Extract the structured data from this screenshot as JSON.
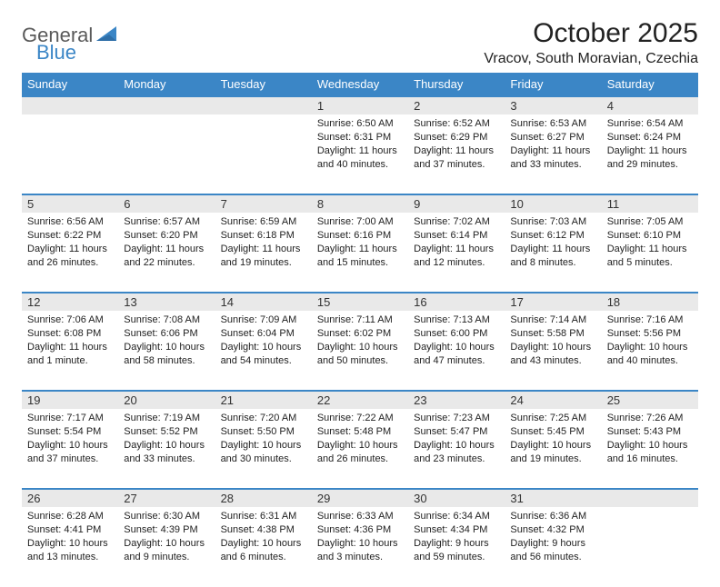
{
  "brand": {
    "part1": "General",
    "part2": "Blue"
  },
  "title": "October 2025",
  "location": "Vracov, South Moravian, Czechia",
  "colors": {
    "accent": "#3b86c6",
    "header_text": "#ffffff",
    "daynum_bg": "#e9e9e9",
    "page_bg": "#ffffff",
    "text": "#222222",
    "logo_gray": "#5a5a5a"
  },
  "day_headers": [
    "Sunday",
    "Monday",
    "Tuesday",
    "Wednesday",
    "Thursday",
    "Friday",
    "Saturday"
  ],
  "weeks": [
    {
      "nums": [
        "",
        "",
        "",
        "1",
        "2",
        "3",
        "4"
      ],
      "cells": [
        null,
        null,
        null,
        {
          "sunrise": "6:50 AM",
          "sunset": "6:31 PM",
          "daylight": "11 hours and 40 minutes."
        },
        {
          "sunrise": "6:52 AM",
          "sunset": "6:29 PM",
          "daylight": "11 hours and 37 minutes."
        },
        {
          "sunrise": "6:53 AM",
          "sunset": "6:27 PM",
          "daylight": "11 hours and 33 minutes."
        },
        {
          "sunrise": "6:54 AM",
          "sunset": "6:24 PM",
          "daylight": "11 hours and 29 minutes."
        }
      ]
    },
    {
      "nums": [
        "5",
        "6",
        "7",
        "8",
        "9",
        "10",
        "11"
      ],
      "cells": [
        {
          "sunrise": "6:56 AM",
          "sunset": "6:22 PM",
          "daylight": "11 hours and 26 minutes."
        },
        {
          "sunrise": "6:57 AM",
          "sunset": "6:20 PM",
          "daylight": "11 hours and 22 minutes."
        },
        {
          "sunrise": "6:59 AM",
          "sunset": "6:18 PM",
          "daylight": "11 hours and 19 minutes."
        },
        {
          "sunrise": "7:00 AM",
          "sunset": "6:16 PM",
          "daylight": "11 hours and 15 minutes."
        },
        {
          "sunrise": "7:02 AM",
          "sunset": "6:14 PM",
          "daylight": "11 hours and 12 minutes."
        },
        {
          "sunrise": "7:03 AM",
          "sunset": "6:12 PM",
          "daylight": "11 hours and 8 minutes."
        },
        {
          "sunrise": "7:05 AM",
          "sunset": "6:10 PM",
          "daylight": "11 hours and 5 minutes."
        }
      ]
    },
    {
      "nums": [
        "12",
        "13",
        "14",
        "15",
        "16",
        "17",
        "18"
      ],
      "cells": [
        {
          "sunrise": "7:06 AM",
          "sunset": "6:08 PM",
          "daylight": "11 hours and 1 minute."
        },
        {
          "sunrise": "7:08 AM",
          "sunset": "6:06 PM",
          "daylight": "10 hours and 58 minutes."
        },
        {
          "sunrise": "7:09 AM",
          "sunset": "6:04 PM",
          "daylight": "10 hours and 54 minutes."
        },
        {
          "sunrise": "7:11 AM",
          "sunset": "6:02 PM",
          "daylight": "10 hours and 50 minutes."
        },
        {
          "sunrise": "7:13 AM",
          "sunset": "6:00 PM",
          "daylight": "10 hours and 47 minutes."
        },
        {
          "sunrise": "7:14 AM",
          "sunset": "5:58 PM",
          "daylight": "10 hours and 43 minutes."
        },
        {
          "sunrise": "7:16 AM",
          "sunset": "5:56 PM",
          "daylight": "10 hours and 40 minutes."
        }
      ]
    },
    {
      "nums": [
        "19",
        "20",
        "21",
        "22",
        "23",
        "24",
        "25"
      ],
      "cells": [
        {
          "sunrise": "7:17 AM",
          "sunset": "5:54 PM",
          "daylight": "10 hours and 37 minutes."
        },
        {
          "sunrise": "7:19 AM",
          "sunset": "5:52 PM",
          "daylight": "10 hours and 33 minutes."
        },
        {
          "sunrise": "7:20 AM",
          "sunset": "5:50 PM",
          "daylight": "10 hours and 30 minutes."
        },
        {
          "sunrise": "7:22 AM",
          "sunset": "5:48 PM",
          "daylight": "10 hours and 26 minutes."
        },
        {
          "sunrise": "7:23 AM",
          "sunset": "5:47 PM",
          "daylight": "10 hours and 23 minutes."
        },
        {
          "sunrise": "7:25 AM",
          "sunset": "5:45 PM",
          "daylight": "10 hours and 19 minutes."
        },
        {
          "sunrise": "7:26 AM",
          "sunset": "5:43 PM",
          "daylight": "10 hours and 16 minutes."
        }
      ]
    },
    {
      "nums": [
        "26",
        "27",
        "28",
        "29",
        "30",
        "31",
        ""
      ],
      "cells": [
        {
          "sunrise": "6:28 AM",
          "sunset": "4:41 PM",
          "daylight": "10 hours and 13 minutes."
        },
        {
          "sunrise": "6:30 AM",
          "sunset": "4:39 PM",
          "daylight": "10 hours and 9 minutes."
        },
        {
          "sunrise": "6:31 AM",
          "sunset": "4:38 PM",
          "daylight": "10 hours and 6 minutes."
        },
        {
          "sunrise": "6:33 AM",
          "sunset": "4:36 PM",
          "daylight": "10 hours and 3 minutes."
        },
        {
          "sunrise": "6:34 AM",
          "sunset": "4:34 PM",
          "daylight": "9 hours and 59 minutes."
        },
        {
          "sunrise": "6:36 AM",
          "sunset": "4:32 PM",
          "daylight": "9 hours and 56 minutes."
        },
        null
      ]
    }
  ],
  "labels": {
    "sunrise": "Sunrise: ",
    "sunset": "Sunset: ",
    "daylight": "Daylight: "
  }
}
